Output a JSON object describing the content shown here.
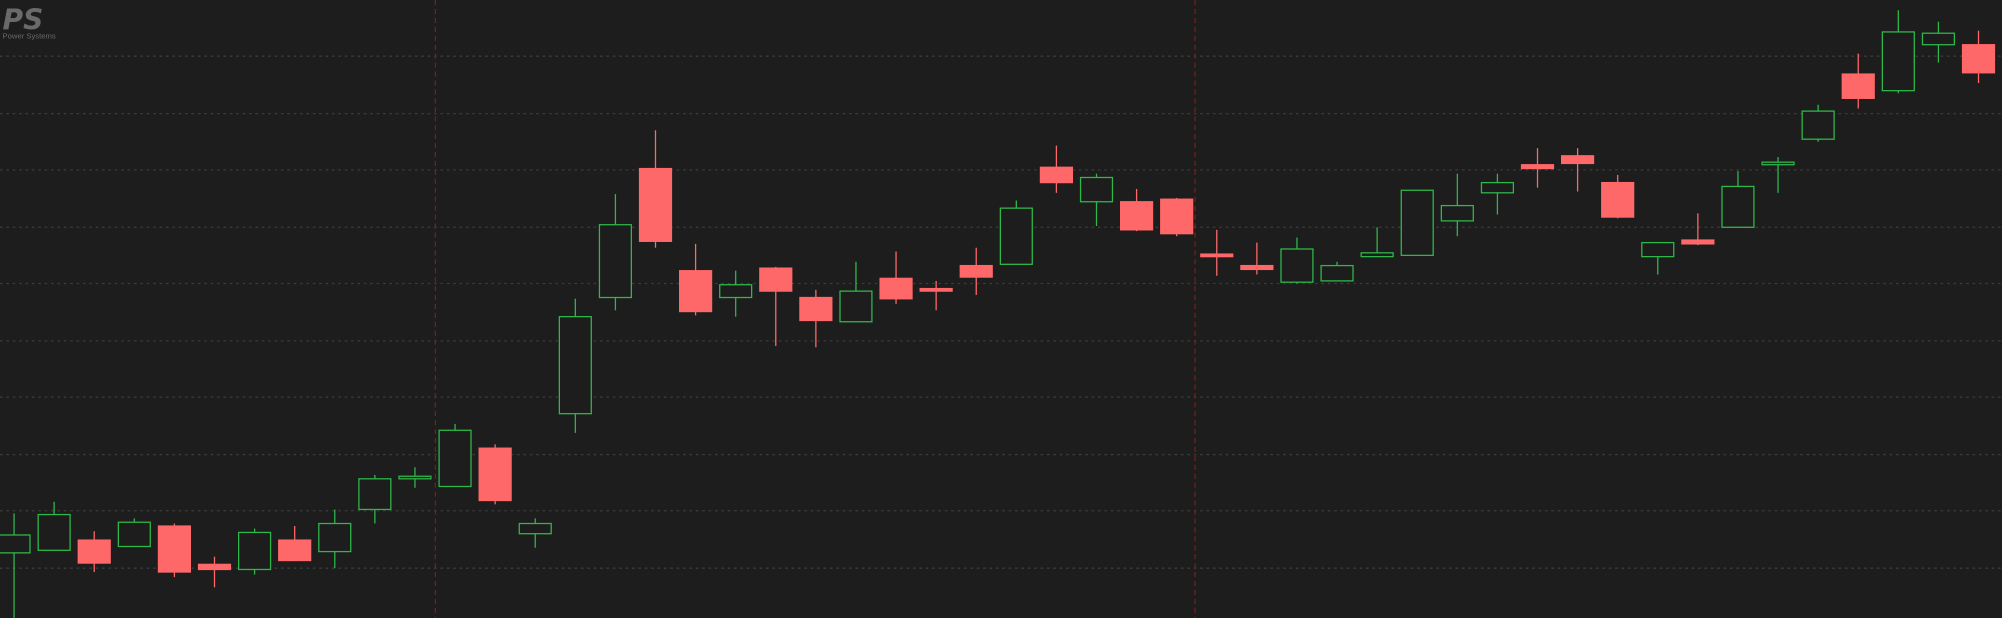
{
  "logo": {
    "title": "PS",
    "subtitle": "Power Systems"
  },
  "chart_data": {
    "type": "candlestick",
    "open": [
      51,
      53,
      61,
      56,
      72,
      42,
      38,
      61,
      52,
      85,
      109,
      103,
      133,
      66,
      160,
      251,
      352,
      272,
      251,
      274,
      251,
      232,
      266,
      258,
      276,
      277,
      353,
      326,
      326,
      328,
      285,
      276,
      263,
      264,
      283,
      284,
      311,
      333,
      355,
      362,
      341,
      283,
      296,
      306,
      355,
      375,
      426,
      413,
      449,
      449
    ],
    "high": [
      82,
      91,
      68,
      78,
      74,
      48,
      70,
      72,
      85,
      112,
      118,
      152,
      136,
      78,
      250,
      332,
      382,
      293,
      272,
      275,
      257,
      279,
      287,
      264,
      290,
      327,
      370,
      348,
      336,
      329,
      304,
      294,
      298,
      279,
      306,
      335,
      348,
      348,
      368,
      368,
      347,
      294,
      317,
      350,
      361,
      402,
      442,
      476,
      467,
      460
    ],
    "low": [
      0,
      53,
      36,
      56,
      32,
      24,
      34,
      45,
      39,
      74,
      102,
      103,
      89,
      55,
      145,
      241,
      290,
      237,
      236,
      213,
      212,
      232,
      246,
      241,
      253,
      277,
      333,
      307,
      303,
      299,
      268,
      269,
      262,
      264,
      283,
      284,
      299,
      316,
      337,
      334,
      313,
      269,
      292,
      306,
      333,
      373,
      399,
      411,
      435,
      419
    ],
    "close": [
      65,
      81,
      43,
      75,
      36,
      38,
      67,
      45,
      74,
      109,
      111,
      147,
      92,
      74,
      236,
      308,
      295,
      240,
      261,
      256,
      233,
      256,
      250,
      256,
      267,
      321,
      341,
      345,
      304,
      301,
      283,
      273,
      289,
      276,
      286,
      335,
      323,
      341,
      352,
      356,
      314,
      294,
      293,
      338,
      357,
      397,
      407,
      459,
      458,
      427
    ],
    "up_color": "#2fb84a",
    "down_color": "#ff6868",
    "ylim": [
      0,
      484
    ],
    "yticks": [
      440,
      395,
      351,
      306,
      262,
      217,
      173,
      128,
      84,
      39
    ],
    "grid": true
  }
}
